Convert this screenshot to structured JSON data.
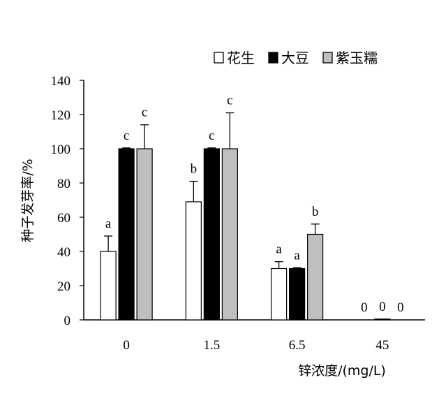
{
  "chart_data": {
    "type": "bar",
    "xlabel": "锌浓度/(mg/L)",
    "ylabel": "种子发芽率/%",
    "ylim": [
      0,
      140
    ],
    "yticks": [
      0,
      20,
      40,
      60,
      80,
      100,
      120,
      140
    ],
    "categories": [
      "0",
      "1.5",
      "6.5",
      "45"
    ],
    "legend_position": "top-right",
    "series": [
      {
        "name": "花生",
        "color": "#ffffff",
        "values": [
          40,
          69,
          30,
          0
        ],
        "errors": [
          9,
          12,
          4,
          0
        ],
        "labels": [
          "a",
          "b",
          "a",
          "0"
        ]
      },
      {
        "name": "大豆",
        "color": "#000000",
        "values": [
          100,
          100,
          30,
          0.5
        ],
        "errors": [
          0.5,
          0.5,
          0.5,
          0
        ],
        "labels": [
          "c",
          "c",
          "a",
          "0"
        ]
      },
      {
        "name": "紫玉糯",
        "color": "#bfbfbf",
        "values": [
          100,
          100,
          50,
          0
        ],
        "errors": [
          14,
          21,
          6,
          0
        ],
        "labels": [
          "c",
          "c",
          "b",
          "0"
        ]
      }
    ]
  }
}
